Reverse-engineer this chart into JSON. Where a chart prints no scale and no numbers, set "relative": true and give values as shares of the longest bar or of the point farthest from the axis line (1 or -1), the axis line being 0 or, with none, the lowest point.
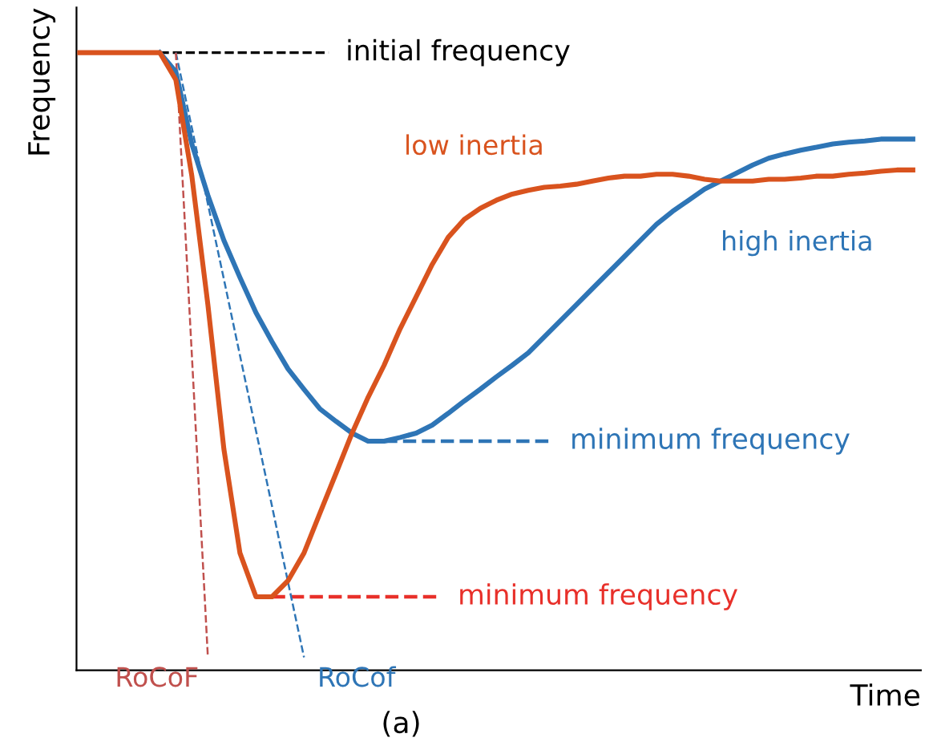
{
  "chart_data": {
    "type": "line",
    "relative": true,
    "xlabel": "Time",
    "ylabel": "Frequency",
    "legend": false,
    "grid": false,
    "marker": "none",
    "categories": [
      null,
      null,
      null,
      null,
      null,
      null,
      null,
      null,
      null,
      null,
      null,
      null,
      null,
      null,
      null,
      null,
      null,
      null,
      null,
      null,
      null,
      null,
      null,
      null,
      null,
      null,
      null,
      null,
      null,
      null,
      null,
      null,
      null,
      null,
      null,
      null,
      null,
      null,
      null,
      null,
      null,
      null,
      null,
      null,
      null,
      null,
      null,
      null,
      null,
      null,
      null,
      null,
      null
    ],
    "series": [
      {
        "name": "low inertia",
        "color": "#d9531e",
        "line_style": "solid",
        "values": [
          1.0,
          1.0,
          1.0,
          1.0,
          1.0,
          1.0,
          0.956,
          0.8,
          0.592,
          0.358,
          0.19,
          0.119,
          0.119,
          0.145,
          0.19,
          0.255,
          0.319,
          0.384,
          0.442,
          0.494,
          0.553,
          0.605,
          0.657,
          0.701,
          0.73,
          0.748,
          0.761,
          0.771,
          0.777,
          0.782,
          0.784,
          0.787,
          0.792,
          0.797,
          0.8,
          0.8,
          0.803,
          0.803,
          0.8,
          0.795,
          0.792,
          0.792,
          0.792,
          0.795,
          0.795,
          0.797,
          0.8,
          0.8,
          0.803,
          0.805,
          0.808,
          0.81,
          0.81
        ]
      },
      {
        "name": "high inertia",
        "color": "#2e75b6",
        "line_style": "solid",
        "values": [
          null,
          null,
          null,
          null,
          null,
          1.0,
          0.969,
          0.852,
          0.769,
          0.696,
          0.636,
          0.579,
          0.532,
          0.488,
          0.455,
          0.423,
          0.403,
          0.384,
          0.371,
          0.371,
          0.377,
          0.384,
          0.397,
          0.416,
          0.436,
          0.455,
          0.475,
          0.494,
          0.514,
          0.54,
          0.566,
          0.592,
          0.618,
          0.644,
          0.67,
          0.696,
          0.722,
          0.743,
          0.761,
          0.779,
          0.792,
          0.805,
          0.818,
          0.829,
          0.836,
          0.842,
          0.847,
          0.852,
          0.855,
          0.857,
          0.86,
          0.86,
          0.86
        ]
      },
      {
        "name": "RoCoF",
        "color": "#c0504d",
        "line_style": "dashed",
        "values": [
          null,
          null,
          null,
          null,
          null,
          null,
          1.0,
          0.51,
          0.021,
          null,
          null,
          null,
          null,
          null,
          null,
          null,
          null,
          null,
          null,
          null,
          null,
          null,
          null,
          null,
          null,
          null,
          null,
          null,
          null,
          null,
          null,
          null,
          null,
          null,
          null,
          null,
          null,
          null,
          null,
          null,
          null,
          null,
          null,
          null,
          null,
          null,
          null,
          null,
          null,
          null,
          null,
          null,
          null
        ]
      },
      {
        "name": "RoCof",
        "color": "#2e75b6",
        "line_style": "dashed",
        "values": [
          null,
          null,
          null,
          null,
          null,
          null,
          1.0,
          0.878,
          0.755,
          0.633,
          0.51,
          0.388,
          0.266,
          0.143,
          0.021,
          null,
          null,
          null,
          null,
          null,
          null,
          null,
          null,
          null,
          null,
          null,
          null,
          null,
          null,
          null,
          null,
          null,
          null,
          null,
          null,
          null,
          null,
          null,
          null,
          null,
          null,
          null,
          null,
          null,
          null,
          null,
          null,
          null,
          null,
          null,
          null,
          null,
          null
        ]
      }
    ],
    "ref_lines": [
      {
        "axis": "y",
        "value": 1.0,
        "label": "initial frequency",
        "color": "#000000",
        "line_style": "dashed"
      },
      {
        "axis": "y",
        "value": 0.371,
        "label": "minimum frequency",
        "color": "#2e75b6",
        "line_style": "dashed"
      },
      {
        "axis": "y",
        "value": 0.119,
        "label": "minimum frequency",
        "color": "#e8302a",
        "line_style": "dashed"
      }
    ],
    "annotations": [
      "(a)"
    ]
  }
}
